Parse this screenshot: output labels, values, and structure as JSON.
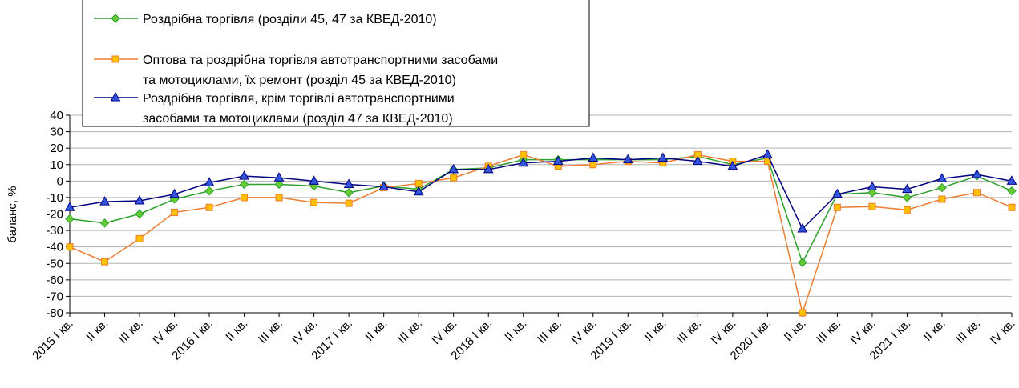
{
  "chart_data": {
    "type": "line",
    "title": "",
    "xlabel": "",
    "ylabel": "баланс, %",
    "ylim": [
      -80,
      40
    ],
    "yticks": [
      40,
      30,
      20,
      10,
      0,
      -10,
      -20,
      -30,
      -40,
      -50,
      -60,
      -70,
      -80
    ],
    "grid": true,
    "legend_position": "top-left",
    "categories": [
      "2015 I кв.",
      "II кв.",
      "III кв.",
      "IV кв.",
      "2016 I кв.",
      "II кв.",
      "III кв.",
      "IV кв.",
      "2017 I кв.",
      "II кв.",
      "III кв.",
      "IV кв.",
      "2018 I кв.",
      "II кв.",
      "III кв.",
      "IV кв.",
      "2019 I кв.",
      "II кв.",
      "III кв.",
      "IV кв.",
      "2020 I кв.",
      "II кв.",
      "III кв.",
      "IV кв.",
      "2021 I кв.",
      "II кв.",
      "III кв.",
      "IV кв."
    ],
    "series": [
      {
        "name": "Роздрібна торгівля (розділи 45, 47 за КВЕД-2010)",
        "legend_lines": [
          "Роздрібна торгівля (розділи 45, 47 за КВЕД-2010)"
        ],
        "color": "#2ca02c",
        "marker_fill": "#66cc33",
        "marker": "diamond",
        "values": [
          -23,
          -25.5,
          -20,
          -11,
          -6,
          -2,
          -2,
          -3,
          -7,
          -3,
          -5,
          7,
          8,
          13,
          13,
          13,
          13,
          13,
          15,
          10,
          14,
          -49.5,
          -8,
          -7,
          -10,
          -4,
          3,
          -6
        ]
      },
      {
        "name": "Оптова та роздрібна торгівля автотранспортними засобами та мотоциклами, їх ремонт (розділ 45 за КВЕД-2010)",
        "legend_lines": [
          "Оптова та роздрібна торгівля автотранспортними засобами",
          "та мотоциклами, їх ремонт (розділ 45 за КВЕД-2010)"
        ],
        "color": "#ed7d31",
        "marker_fill": "#ffc000",
        "marker": "square",
        "values": [
          -40,
          -49,
          -35,
          -19,
          -16,
          -10,
          -10,
          -13,
          -13.5,
          -4,
          -1.5,
          2,
          9,
          16,
          9,
          10,
          12,
          11,
          16,
          12,
          12,
          -80,
          -16,
          -15.5,
          -17.5,
          -11,
          -7,
          -16
        ]
      },
      {
        "name": "Роздрібна торгівля, крім торгівлі автотранспортними засобами та мотоциклами (розділ 47 за КВЕД-2010)",
        "legend_lines": [
          "Роздрібна торгівля, крім торгівлі автотранспортними",
          "засобами та мотоциклами (розділ 47 за КВЕД-2010)"
        ],
        "color": "#000080",
        "marker_fill": "#3355dd",
        "marker": "triangle",
        "values": [
          -16,
          -12.5,
          -12,
          -8,
          -1,
          3,
          2,
          0,
          -2,
          -3.5,
          -6.5,
          7,
          7,
          11,
          12,
          14,
          13,
          14,
          12,
          9,
          16,
          -29,
          -8,
          -3.5,
          -5,
          1.5,
          4,
          0
        ]
      }
    ]
  }
}
